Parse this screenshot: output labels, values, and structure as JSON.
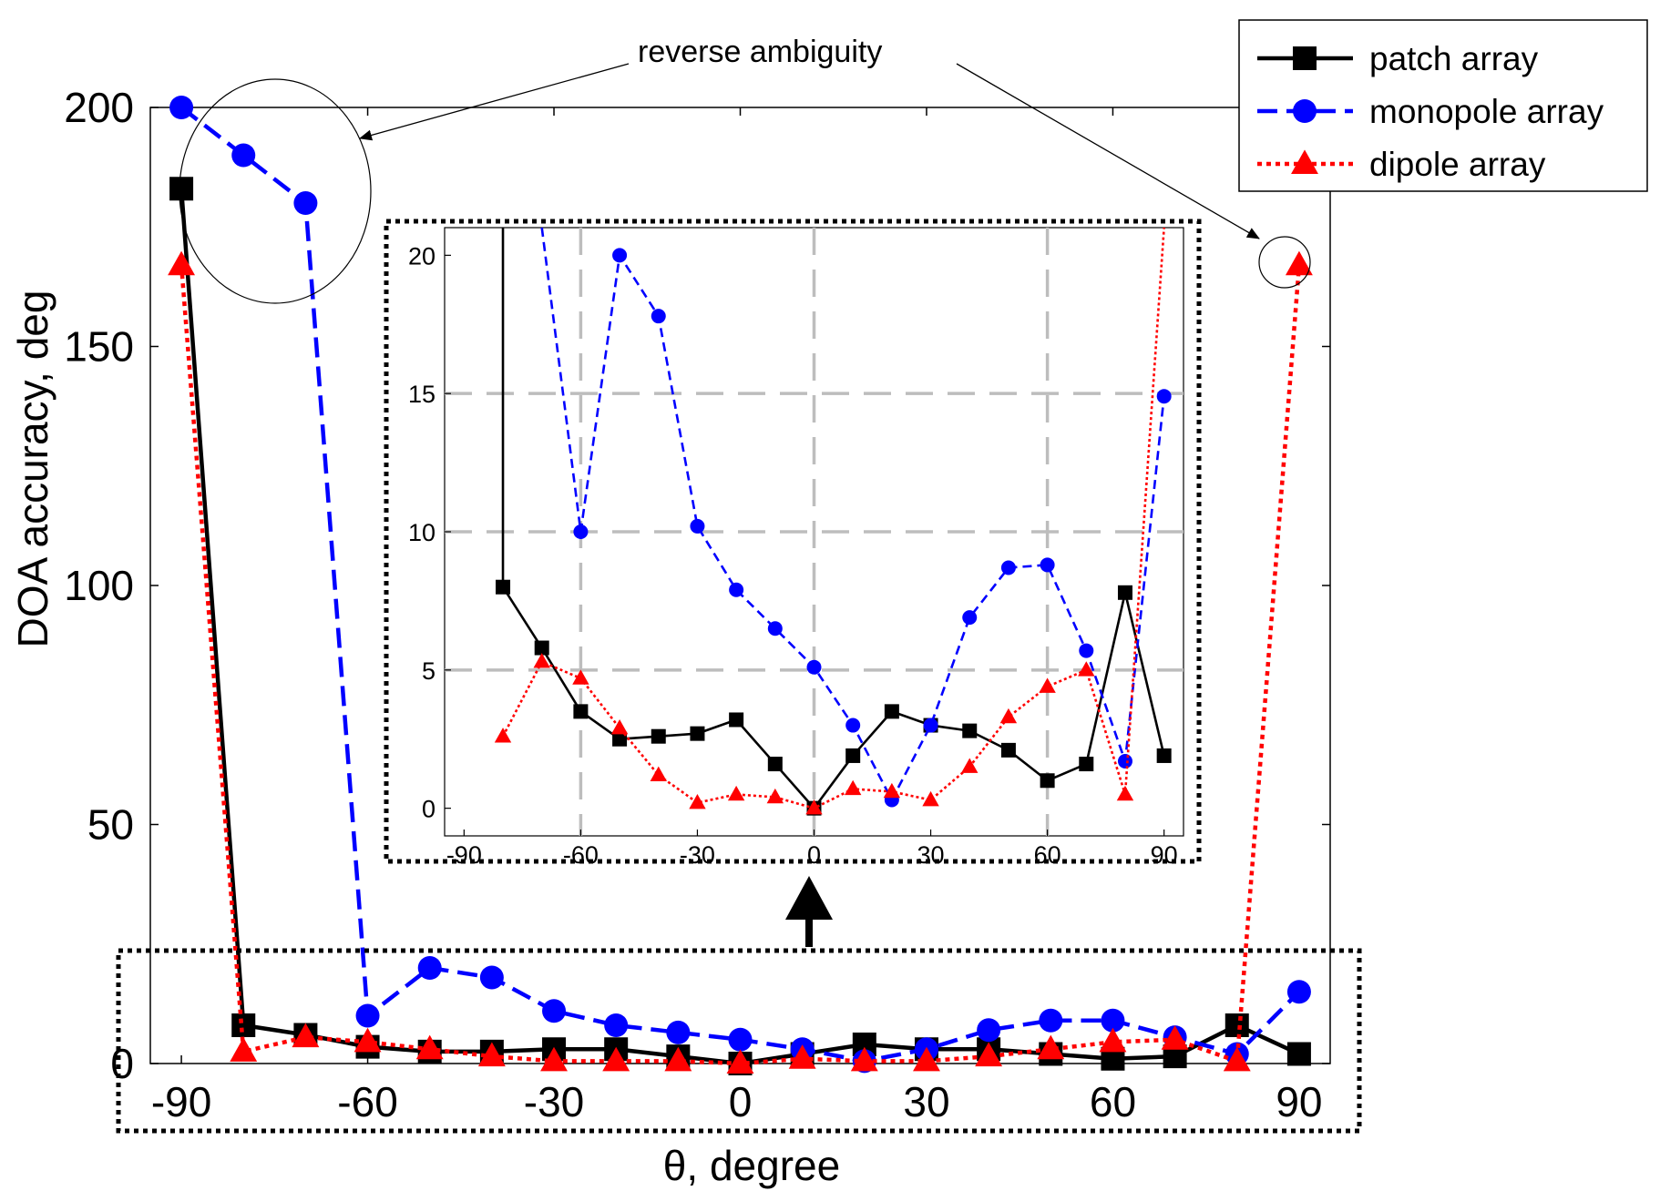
{
  "chart_data": [
    {
      "type": "line",
      "role": "main",
      "xlabel": "θ, degree",
      "ylabel": "DOA accuracy, deg",
      "xlim": [
        -95,
        95
      ],
      "ylim": [
        0,
        200
      ],
      "xticks": [
        -90,
        -60,
        -30,
        0,
        30,
        60,
        90
      ],
      "yticks": [
        0,
        50,
        100,
        150,
        200
      ],
      "grid": false,
      "x": [
        -90,
        -80,
        -70,
        -60,
        -50,
        -40,
        -30,
        -20,
        -10,
        0,
        10,
        20,
        30,
        40,
        50,
        60,
        70,
        80,
        90
      ],
      "series": [
        {
          "name": "patch array",
          "color": "#000000",
          "dash": "solid",
          "marker": "square",
          "values": [
            183,
            8,
            6,
            3.5,
            2.5,
            2.5,
            3,
            3,
            1.5,
            0,
            2,
            4,
            3,
            3,
            2,
            1,
            1.5,
            8,
            2
          ]
        },
        {
          "name": "monopole array",
          "color": "#0000ff",
          "dash": "dashed",
          "marker": "circle",
          "values": [
            200,
            190,
            180,
            10,
            20,
            18,
            11,
            8,
            6.5,
            5,
            3,
            0.5,
            3,
            7,
            9,
            9,
            5.5,
            2,
            15
          ]
        },
        {
          "name": "dipole array",
          "color": "#ff0000",
          "dash": "dotted",
          "marker": "triangle",
          "values": [
            167,
            2.5,
            5.5,
            4.5,
            3,
            1.5,
            0.5,
            0.5,
            0.5,
            0,
            1,
            0.5,
            0.5,
            1.5,
            3,
            4.5,
            5,
            0.5,
            167
          ]
        }
      ],
      "legend": {
        "position": "top-right",
        "entries": [
          "patch array",
          "monopole array",
          "dipole array"
        ]
      },
      "annotations": [
        {
          "text": "reverse ambiguity",
          "points_to": [
            "left cluster near θ = -90",
            "dipole point at θ = 90"
          ]
        }
      ]
    },
    {
      "type": "line",
      "role": "inset",
      "xlim": [
        -95,
        95
      ],
      "ylim": [
        -1,
        21
      ],
      "xticks": [
        -90,
        -60,
        -30,
        0,
        30,
        60,
        90
      ],
      "yticks": [
        0,
        5,
        10,
        15,
        20
      ],
      "grid": true,
      "gridlines_x": [
        -60,
        0,
        60
      ],
      "gridlines_y": [
        5,
        10,
        15
      ],
      "x": [
        -80,
        -70,
        -60,
        -50,
        -40,
        -30,
        -20,
        -10,
        0,
        10,
        20,
        30,
        40,
        50,
        60,
        70,
        80,
        90
      ],
      "series": [
        {
          "name": "patch array",
          "color": "#000000",
          "dash": "solid",
          "marker": "square",
          "values": [
            8,
            5.8,
            3.5,
            2.5,
            2.6,
            2.7,
            3.2,
            1.6,
            0,
            1.9,
            3.5,
            3,
            2.8,
            2.1,
            1,
            1.6,
            7.8,
            1.9
          ],
          "offscale_from": {
            "x": -80,
            "y": 183
          }
        },
        {
          "name": "monopole array",
          "color": "#0000ff",
          "dash": "dashed",
          "marker": "circle",
          "values": [
            null,
            null,
            10,
            20,
            17.8,
            10.2,
            7.9,
            6.5,
            5.1,
            3,
            0.3,
            3,
            6.9,
            8.7,
            8.8,
            5.7,
            1.7,
            14.9
          ],
          "offscale_from": {
            "x": -70,
            "y": 180
          }
        },
        {
          "name": "dipole array",
          "color": "#ff0000",
          "dash": "dotted",
          "marker": "triangle",
          "values": [
            2.6,
            5.3,
            4.7,
            2.9,
            1.2,
            0.2,
            0.5,
            0.4,
            0,
            0.7,
            0.6,
            0.3,
            1.5,
            3.3,
            4.4,
            5,
            0.5,
            null
          ],
          "offscale_to": {
            "x": 90,
            "y": 167
          }
        }
      ]
    }
  ],
  "indicators": {
    "zoom_arrow": "up-arrow-icon"
  }
}
